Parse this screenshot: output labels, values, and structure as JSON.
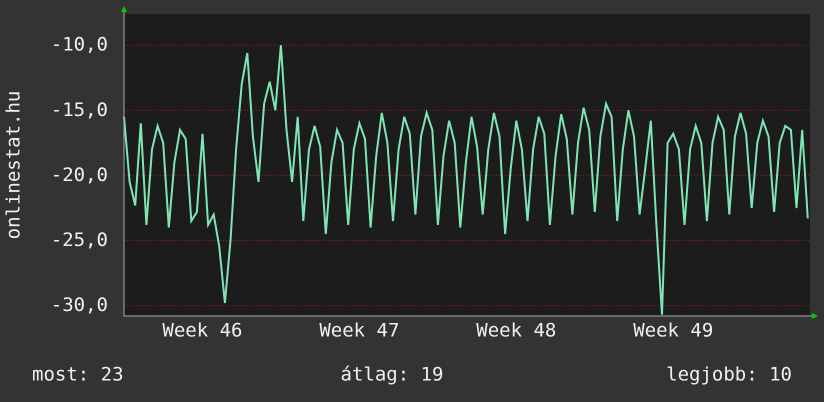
{
  "chart_data": {
    "type": "line",
    "y_label": "onlinestat.hu",
    "series": [
      {
        "name": "onlinestat.hu",
        "color": "#7fe5b4",
        "x": [
          0,
          0.25,
          0.5,
          0.75,
          1,
          1.25,
          1.5,
          1.75,
          2,
          2.25,
          2.5,
          2.75,
          3,
          3.25,
          3.5,
          3.75,
          4,
          4.25,
          4.5,
          4.75,
          5,
          5.25,
          5.5,
          5.75,
          6,
          6.25,
          6.5,
          6.75,
          7,
          7.25,
          7.5,
          7.75,
          8,
          8.25,
          8.5,
          8.75,
          9,
          9.25,
          9.5,
          9.75,
          10,
          10.25,
          10.5,
          10.75,
          11,
          11.25,
          11.5,
          11.75,
          12,
          12.25,
          12.5,
          12.75,
          13,
          13.25,
          13.5,
          13.75,
          14,
          14.25,
          14.5,
          14.75,
          15,
          15.25,
          15.5,
          15.75,
          16,
          16.25,
          16.5,
          16.75,
          17,
          17.25,
          17.5,
          17.75,
          18,
          18.25,
          18.5,
          18.75,
          19,
          19.25,
          19.5,
          19.75,
          20,
          20.25,
          20.5,
          20.75,
          21,
          21.25,
          21.5,
          21.75,
          22,
          22.25,
          22.5,
          22.75,
          23,
          23.25,
          23.5,
          23.75,
          24,
          24.25,
          24.5,
          24.75,
          25,
          25.25,
          25.5,
          25.75,
          26,
          26.25,
          26.5,
          26.75,
          27,
          27.25,
          27.5,
          27.75,
          28,
          28.25,
          28.5,
          28.75,
          29,
          29.25,
          29.5,
          29.75,
          30,
          30.25,
          30.5
        ],
        "values": [
          -15.5,
          -20.5,
          -22.3,
          -16,
          -23.8,
          -18,
          -16.2,
          -17.5,
          -24,
          -19,
          -16.5,
          -17.2,
          -23.5,
          -22.8,
          -16.8,
          -23.8,
          -23,
          -25.5,
          -29.8,
          -25,
          -18,
          -13,
          -10.6,
          -17,
          -20.5,
          -14.5,
          -12.8,
          -15,
          -10,
          -16.5,
          -20.5,
          -15.5,
          -23.5,
          -18,
          -16.2,
          -17.8,
          -24.5,
          -19,
          -16.5,
          -17.5,
          -23.8,
          -18,
          -16,
          -17.2,
          -24,
          -18.5,
          -15.2,
          -17.5,
          -23.5,
          -18,
          -15.5,
          -16.8,
          -23,
          -17,
          -15.2,
          -16.5,
          -23.8,
          -18.5,
          -15.8,
          -17.5,
          -24,
          -19,
          -15.5,
          -17.8,
          -23,
          -18,
          -15.2,
          -17,
          -24.5,
          -19.5,
          -15.8,
          -18,
          -23.5,
          -18,
          -15.5,
          -16.8,
          -23.8,
          -18.5,
          -15.3,
          -17.2,
          -23,
          -17.5,
          -14.8,
          -16.5,
          -22.8,
          -17,
          -14.5,
          -15.5,
          -23.5,
          -18,
          -15,
          -17,
          -23,
          -19.5,
          -15.8,
          -23.8,
          -30.7,
          -17.5,
          -16.8,
          -18,
          -23.8,
          -18,
          -16.2,
          -17.5,
          -23.5,
          -17.5,
          -15.5,
          -16.5,
          -23,
          -17,
          -15.2,
          -16.8,
          -22.5,
          -17.5,
          -15.8,
          -17,
          -22.8,
          -17.5,
          -16.2,
          -16.5,
          -22.5,
          -16.5,
          -23.3
        ]
      }
    ],
    "xlim": [
      0,
      30.6
    ],
    "xticks": [
      {
        "value": 3.5,
        "label": "Week 46"
      },
      {
        "value": 10.5,
        "label": "Week 47"
      },
      {
        "value": 17.5,
        "label": "Week 48"
      },
      {
        "value": 24.5,
        "label": "Week 49"
      }
    ],
    "ylim": [
      -30.8,
      -7.6
    ],
    "yticks": [
      {
        "value": -30,
        "label": "-30,0"
      },
      {
        "value": -25,
        "label": "-25,0"
      },
      {
        "value": -20,
        "label": "-20,0"
      },
      {
        "value": -15,
        "label": "-15,0"
      },
      {
        "value": -10,
        "label": "-10,0"
      }
    ],
    "grid": true,
    "footer": {
      "now": "most: 23",
      "average": "átlag: 19",
      "best": "legjobb: 10"
    }
  }
}
